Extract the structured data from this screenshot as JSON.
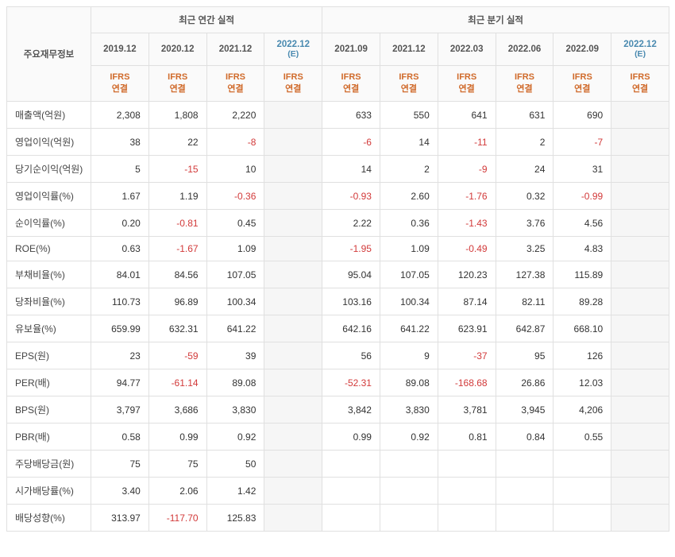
{
  "header": {
    "row_label_title": "주요재무정보",
    "annual_title": "최근 연간 실적",
    "quarterly_title": "최근 분기 실적",
    "ifrs_label": "IFRS",
    "ifrs_sub": "연결",
    "estimate_suffix": "(E)",
    "annual_periods": [
      "2019.12",
      "2020.12",
      "2021.12",
      "2022.12"
    ],
    "annual_is_estimate": [
      false,
      false,
      false,
      true
    ],
    "quarterly_periods": [
      "2021.09",
      "2021.12",
      "2022.03",
      "2022.06",
      "2022.09",
      "2022.12"
    ],
    "quarterly_is_estimate": [
      false,
      false,
      false,
      false,
      false,
      true
    ]
  },
  "rows": [
    {
      "label": "매출액(억원)",
      "annual": [
        "2,308",
        "1,808",
        "2,220",
        ""
      ],
      "quarterly": [
        "633",
        "550",
        "641",
        "631",
        "690",
        ""
      ],
      "neg_a": [
        0,
        0,
        0,
        0
      ],
      "neg_q": [
        0,
        0,
        0,
        0,
        0,
        0
      ]
    },
    {
      "label": "영업이익(억원)",
      "annual": [
        "38",
        "22",
        "-8",
        ""
      ],
      "quarterly": [
        "-6",
        "14",
        "-11",
        "2",
        "-7",
        ""
      ],
      "neg_a": [
        0,
        0,
        1,
        0
      ],
      "neg_q": [
        1,
        0,
        1,
        0,
        1,
        0
      ]
    },
    {
      "label": "당기순이익(억원)",
      "annual": [
        "5",
        "-15",
        "10",
        ""
      ],
      "quarterly": [
        "14",
        "2",
        "-9",
        "24",
        "31",
        ""
      ],
      "neg_a": [
        0,
        1,
        0,
        0
      ],
      "neg_q": [
        0,
        0,
        1,
        0,
        0,
        0
      ]
    },
    {
      "label": "영업이익률(%)",
      "annual": [
        "1.67",
        "1.19",
        "-0.36",
        ""
      ],
      "quarterly": [
        "-0.93",
        "2.60",
        "-1.76",
        "0.32",
        "-0.99",
        ""
      ],
      "neg_a": [
        0,
        0,
        1,
        0
      ],
      "neg_q": [
        1,
        0,
        1,
        0,
        1,
        0
      ]
    },
    {
      "label": "순이익률(%)",
      "annual": [
        "0.20",
        "-0.81",
        "0.45",
        ""
      ],
      "quarterly": [
        "2.22",
        "0.36",
        "-1.43",
        "3.76",
        "4.56",
        ""
      ],
      "neg_a": [
        0,
        1,
        0,
        0
      ],
      "neg_q": [
        0,
        0,
        1,
        0,
        0,
        0
      ]
    },
    {
      "label": "ROE(%)",
      "annual": [
        "0.63",
        "-1.67",
        "1.09",
        ""
      ],
      "quarterly": [
        "-1.95",
        "1.09",
        "-0.49",
        "3.25",
        "4.83",
        ""
      ],
      "neg_a": [
        0,
        1,
        0,
        0
      ],
      "neg_q": [
        1,
        0,
        1,
        0,
        0,
        0
      ]
    },
    {
      "label": "부채비율(%)",
      "annual": [
        "84.01",
        "84.56",
        "107.05",
        ""
      ],
      "quarterly": [
        "95.04",
        "107.05",
        "120.23",
        "127.38",
        "115.89",
        ""
      ],
      "neg_a": [
        0,
        0,
        0,
        0
      ],
      "neg_q": [
        0,
        0,
        0,
        0,
        0,
        0
      ]
    },
    {
      "label": "당좌비율(%)",
      "annual": [
        "110.73",
        "96.89",
        "100.34",
        ""
      ],
      "quarterly": [
        "103.16",
        "100.34",
        "87.14",
        "82.11",
        "89.28",
        ""
      ],
      "neg_a": [
        0,
        0,
        0,
        0
      ],
      "neg_q": [
        0,
        0,
        0,
        0,
        0,
        0
      ]
    },
    {
      "label": "유보율(%)",
      "annual": [
        "659.99",
        "632.31",
        "641.22",
        ""
      ],
      "quarterly": [
        "642.16",
        "641.22",
        "623.91",
        "642.87",
        "668.10",
        ""
      ],
      "neg_a": [
        0,
        0,
        0,
        0
      ],
      "neg_q": [
        0,
        0,
        0,
        0,
        0,
        0
      ]
    },
    {
      "label": "EPS(원)",
      "annual": [
        "23",
        "-59",
        "39",
        ""
      ],
      "quarterly": [
        "56",
        "9",
        "-37",
        "95",
        "126",
        ""
      ],
      "neg_a": [
        0,
        1,
        0,
        0
      ],
      "neg_q": [
        0,
        0,
        1,
        0,
        0,
        0
      ]
    },
    {
      "label": "PER(배)",
      "annual": [
        "94.77",
        "-61.14",
        "89.08",
        ""
      ],
      "quarterly": [
        "-52.31",
        "89.08",
        "-168.68",
        "26.86",
        "12.03",
        ""
      ],
      "neg_a": [
        0,
        1,
        0,
        0
      ],
      "neg_q": [
        1,
        0,
        1,
        0,
        0,
        0
      ]
    },
    {
      "label": "BPS(원)",
      "annual": [
        "3,797",
        "3,686",
        "3,830",
        ""
      ],
      "quarterly": [
        "3,842",
        "3,830",
        "3,781",
        "3,945",
        "4,206",
        ""
      ],
      "neg_a": [
        0,
        0,
        0,
        0
      ],
      "neg_q": [
        0,
        0,
        0,
        0,
        0,
        0
      ]
    },
    {
      "label": "PBR(배)",
      "annual": [
        "0.58",
        "0.99",
        "0.92",
        ""
      ],
      "quarterly": [
        "0.99",
        "0.92",
        "0.81",
        "0.84",
        "0.55",
        ""
      ],
      "neg_a": [
        0,
        0,
        0,
        0
      ],
      "neg_q": [
        0,
        0,
        0,
        0,
        0,
        0
      ]
    },
    {
      "label": "주당배당금(원)",
      "annual": [
        "75",
        "75",
        "50",
        ""
      ],
      "quarterly": [
        "",
        "",
        "",
        "",
        "",
        ""
      ],
      "neg_a": [
        0,
        0,
        0,
        0
      ],
      "neg_q": [
        0,
        0,
        0,
        0,
        0,
        0
      ]
    },
    {
      "label": "시가배당률(%)",
      "annual": [
        "3.40",
        "2.06",
        "1.42",
        ""
      ],
      "quarterly": [
        "",
        "",
        "",
        "",
        "",
        ""
      ],
      "neg_a": [
        0,
        0,
        0,
        0
      ],
      "neg_q": [
        0,
        0,
        0,
        0,
        0,
        0
      ]
    },
    {
      "label": "배당성향(%)",
      "annual": [
        "313.97",
        "-117.70",
        "125.83",
        ""
      ],
      "quarterly": [
        "",
        "",
        "",
        "",
        "",
        ""
      ],
      "neg_a": [
        0,
        1,
        0,
        0
      ],
      "neg_q": [
        0,
        0,
        0,
        0,
        0,
        0
      ]
    }
  ],
  "style": {
    "neg_color": "#d23a3a",
    "ifrs_color": "#d06a2a",
    "est_color": "#4a8ab0",
    "border_color": "#e0e0e0",
    "shade_bg": "#f6f6f6",
    "header_bg": "#fafafa",
    "font_size": 12
  }
}
